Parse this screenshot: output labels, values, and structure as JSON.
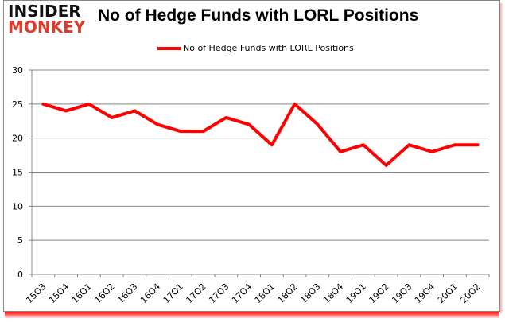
{
  "logo": {
    "line1": "INSIDER",
    "line2": "MONKEY"
  },
  "chart_data": {
    "type": "line",
    "title": "No of Hedge Funds with LORL Positions",
    "xlabel": "",
    "ylabel": "",
    "ylim": [
      0,
      30
    ],
    "yticks": [
      0,
      5,
      10,
      15,
      20,
      25,
      30
    ],
    "grid": true,
    "legend_position": "top",
    "categories": [
      "15Q3",
      "15Q4",
      "16Q1",
      "16Q2",
      "16Q3",
      "16Q4",
      "17Q1",
      "17Q2",
      "17Q3",
      "17Q4",
      "18Q1",
      "18Q2",
      "18Q3",
      "18Q4",
      "19Q1",
      "19Q2",
      "19Q3",
      "19Q4",
      "20Q1",
      "20Q2"
    ],
    "series": [
      {
        "name": "No of Hedge Funds with LORL Positions",
        "color": "#ff0000",
        "values": [
          25,
          24,
          25,
          23,
          24,
          22,
          21,
          21,
          23,
          22,
          19,
          25,
          22,
          18,
          19,
          16,
          19,
          18,
          19,
          19
        ]
      }
    ]
  }
}
